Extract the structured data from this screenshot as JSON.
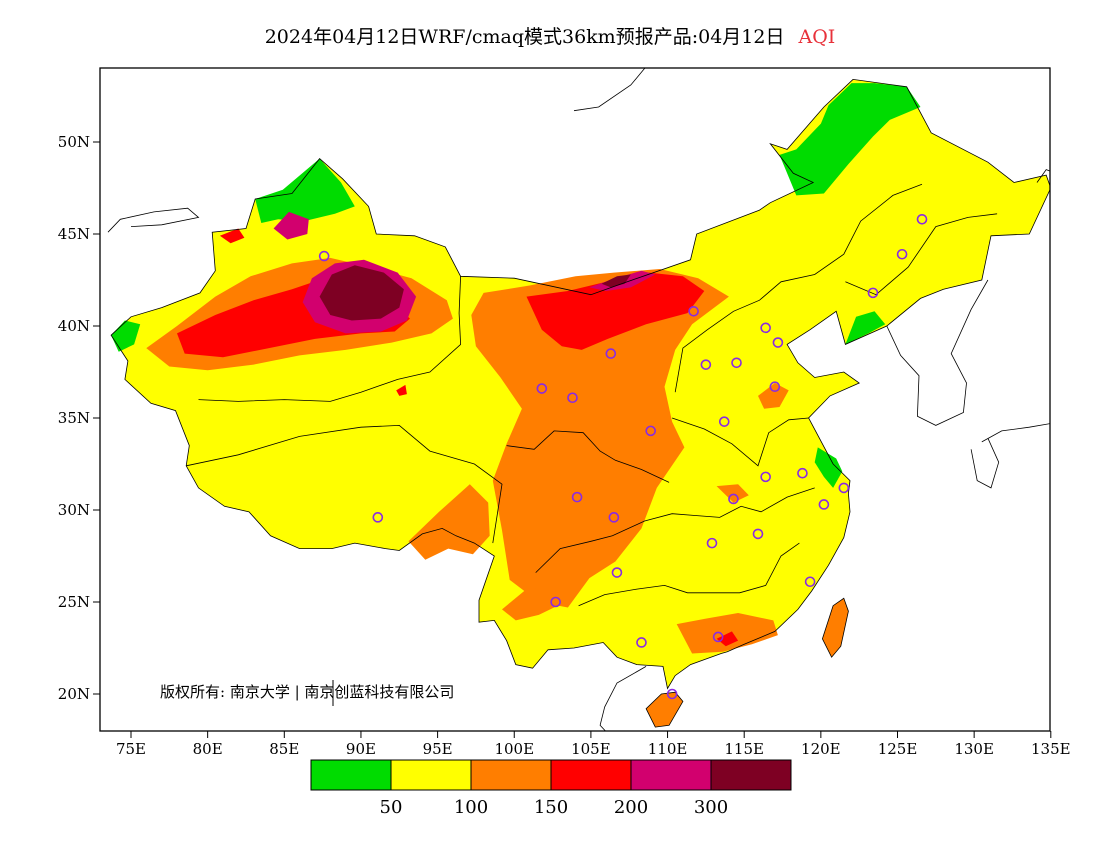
{
  "title": {
    "main": "2024年04月12日WRF/cmaq模式36km预报产品:04月12日",
    "variable": "AQI",
    "variable_color": "#e8313a"
  },
  "axes": {
    "x_ticks": [
      "75E",
      "80E",
      "85E",
      "90E",
      "95E",
      "100E",
      "105E",
      "110E",
      "115E",
      "120E",
      "125E",
      "130E",
      "135E"
    ],
    "y_ticks": [
      "20N",
      "25N",
      "30N",
      "35N",
      "40N",
      "45N",
      "50N"
    ]
  },
  "copyright": "版权所有: 南京大学 | 南京创蓝科技有限公司",
  "legend": {
    "colors": [
      "#00dc00",
      "#ffff00",
      "#ff7e00",
      "#ff0000",
      "#d2006e",
      "#7e0023"
    ],
    "labels": [
      "50",
      "100",
      "150",
      "200",
      "300"
    ]
  },
  "map_colors": {
    "good": "#00dc00",
    "moderate": "#ffff00",
    "sensitive": "#ff7e00",
    "unhealthy": "#ff0000",
    "very_unhealthy": "#d2006e",
    "hazardous": "#7e0023",
    "station_marker": "#8a2be2"
  }
}
